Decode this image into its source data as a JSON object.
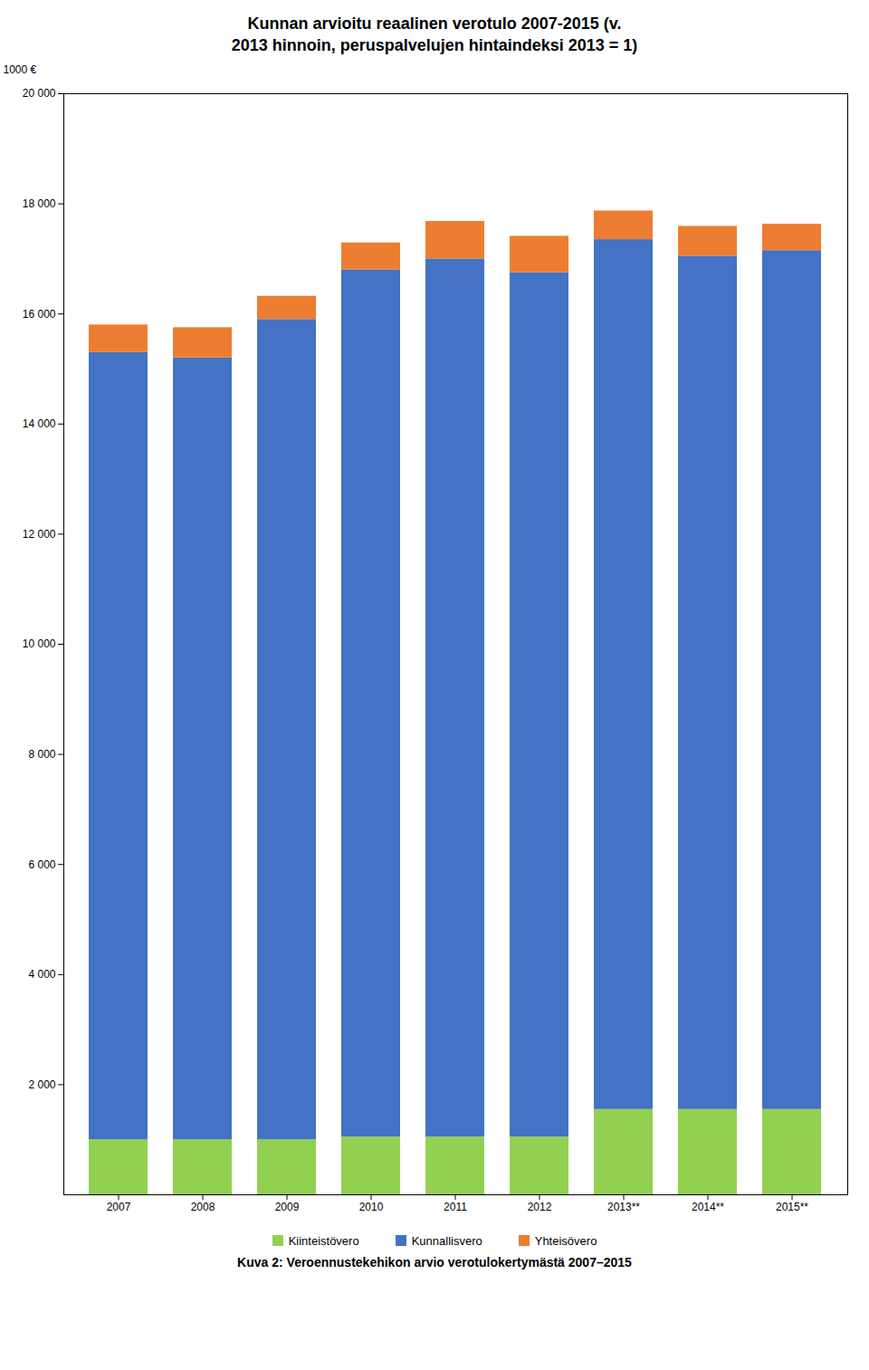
{
  "chart_data": {
    "type": "bar",
    "stacked": true,
    "title": "Kunnan arvioitu reaalinen verotulo 2007-2015 (v.\n2013 hinnoin, peruspalvelujen hintaindeksi 2013 = 1)",
    "ylabel": "1000 €",
    "caption": "Kuva 2: Veroennustekehikon arvio verotulokertymästä 2007–2015",
    "categories": [
      "2007",
      "2008",
      "2009",
      "2010",
      "2011",
      "2012",
      "2013**",
      "2014**",
      "2015**"
    ],
    "series": [
      {
        "name": "Kiinteistövero",
        "color": "#92d050",
        "values": [
          1000,
          1000,
          1000,
          1050,
          1050,
          1050,
          1550,
          1550,
          1550
        ]
      },
      {
        "name": "Kunnallisvero",
        "color": "#4472c4",
        "values": [
          14300,
          14200,
          14900,
          15750,
          15950,
          15700,
          15800,
          15500,
          15600
        ]
      },
      {
        "name": "Yhteisövero",
        "color": "#ed7d31",
        "values": [
          500,
          550,
          420,
          490,
          680,
          660,
          520,
          540,
          480
        ]
      }
    ],
    "ylim": [
      0,
      20000
    ],
    "yticks": [
      {
        "value": 2000,
        "label": "2 000"
      },
      {
        "value": 4000,
        "label": "4 000"
      },
      {
        "value": 6000,
        "label": "6 000"
      },
      {
        "value": 8000,
        "label": "8 000"
      },
      {
        "value": 10000,
        "label": "10 000"
      },
      {
        "value": 12000,
        "label": "12 000"
      },
      {
        "value": 14000,
        "label": "14 000"
      },
      {
        "value": 16000,
        "label": "16 000"
      },
      {
        "value": 18000,
        "label": "18 000"
      },
      {
        "value": 20000,
        "label": "20 000"
      }
    ],
    "grid": false,
    "legend": "bottom"
  }
}
